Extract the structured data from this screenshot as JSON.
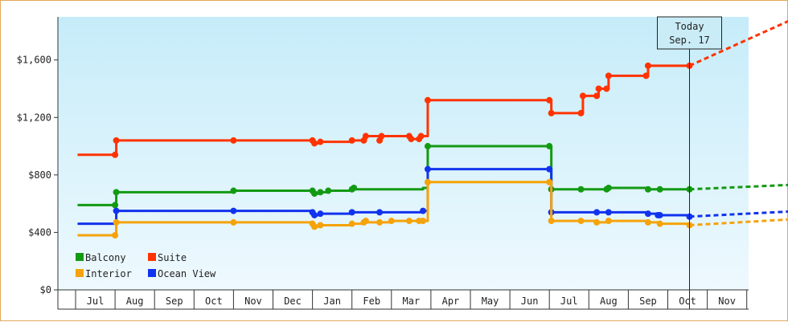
{
  "chart_data": {
    "type": "line",
    "title": "",
    "xlabel": "",
    "ylabel": "",
    "ylim": [
      0,
      1900
    ],
    "grid": false,
    "legend_position": "bottom-left",
    "y_ticks": [
      {
        "value": 0,
        "label": "$0"
      },
      {
        "value": 400,
        "label": "$400"
      },
      {
        "value": 800,
        "label": "$800"
      },
      {
        "value": 1200,
        "label": "$1,200"
      },
      {
        "value": 1600,
        "label": "$1,600"
      }
    ],
    "x_months": [
      "Jul",
      "Aug",
      "Sep",
      "Oct",
      "Nov",
      "Dec",
      "Jan",
      "Feb",
      "Mar",
      "Apr",
      "May",
      "Jun",
      "Jul",
      "Aug",
      "Sep",
      "Oct",
      "Nov"
    ],
    "today_marker": {
      "x": 15.05,
      "line1": "Today",
      "line2": "Sep. 17"
    },
    "series": [
      {
        "name": "Suite",
        "color": "#ff3300",
        "points": [
          [
            -0.45,
            940
          ],
          [
            0.5,
            940
          ],
          [
            0.53,
            1040
          ],
          [
            3.5,
            1040
          ],
          [
            5.5,
            1040
          ],
          [
            5.55,
            1020
          ],
          [
            5.7,
            1030
          ],
          [
            6.5,
            1040
          ],
          [
            6.8,
            1040
          ],
          [
            6.85,
            1070
          ],
          [
            7.2,
            1040
          ],
          [
            7.25,
            1070
          ],
          [
            7.95,
            1070
          ],
          [
            8.0,
            1050
          ],
          [
            8.2,
            1050
          ],
          [
            8.25,
            1070
          ],
          [
            8.3,
            1070
          ],
          [
            8.42,
            1320
          ],
          [
            11.5,
            1320
          ],
          [
            11.55,
            1230
          ],
          [
            12.3,
            1230
          ],
          [
            12.35,
            1350
          ],
          [
            12.7,
            1350
          ],
          [
            12.75,
            1400
          ],
          [
            12.95,
            1400
          ],
          [
            13.0,
            1490
          ],
          [
            13.95,
            1490
          ],
          [
            14.0,
            1560
          ],
          [
            15.05,
            1560
          ]
        ],
        "projection": [
          [
            15.05,
            1560
          ],
          [
            17.55,
            1870
          ]
        ]
      },
      {
        "name": "Balcony",
        "color": "#139a13",
        "points": [
          [
            -0.45,
            590
          ],
          [
            0.5,
            590
          ],
          [
            0.53,
            680
          ],
          [
            3.5,
            690
          ],
          [
            5.5,
            690
          ],
          [
            5.55,
            670
          ],
          [
            5.7,
            680
          ],
          [
            5.9,
            690
          ],
          [
            6.5,
            700
          ],
          [
            8.3,
            710
          ],
          [
            8.42,
            1000
          ],
          [
            11.5,
            1000
          ],
          [
            11.55,
            700
          ],
          [
            12.3,
            700
          ],
          [
            12.95,
            700
          ],
          [
            13.0,
            710
          ],
          [
            14.0,
            700
          ],
          [
            14.3,
            700
          ],
          [
            15.05,
            700
          ]
        ],
        "projection": [
          [
            15.05,
            700
          ],
          [
            17.55,
            730
          ]
        ]
      },
      {
        "name": "Ocean View",
        "color": "#1133ee",
        "points": [
          [
            -0.45,
            460
          ],
          [
            0.5,
            460
          ],
          [
            0.53,
            550
          ],
          [
            3.5,
            550
          ],
          [
            5.5,
            540
          ],
          [
            5.55,
            520
          ],
          [
            5.7,
            530
          ],
          [
            6.5,
            540
          ],
          [
            7.2,
            540
          ],
          [
            8.3,
            550
          ],
          [
            8.42,
            840
          ],
          [
            11.5,
            840
          ],
          [
            11.55,
            540
          ],
          [
            12.7,
            540
          ],
          [
            13.0,
            540
          ],
          [
            14.0,
            530
          ],
          [
            14.25,
            520
          ],
          [
            14.3,
            520
          ],
          [
            15.05,
            510
          ]
        ],
        "projection": [
          [
            15.05,
            510
          ],
          [
            17.55,
            545
          ]
        ]
      },
      {
        "name": "Interior",
        "color": "#f5a30a",
        "points": [
          [
            -0.45,
            380
          ],
          [
            0.5,
            380
          ],
          [
            0.53,
            470
          ],
          [
            3.5,
            470
          ],
          [
            5.5,
            460
          ],
          [
            5.55,
            440
          ],
          [
            5.7,
            450
          ],
          [
            6.5,
            460
          ],
          [
            6.8,
            470
          ],
          [
            7.2,
            470
          ],
          [
            7.5,
            480
          ],
          [
            8.3,
            480
          ],
          [
            8.42,
            750
          ],
          [
            11.5,
            750
          ],
          [
            11.55,
            480
          ],
          [
            12.3,
            480
          ],
          [
            12.7,
            470
          ],
          [
            13.0,
            480
          ],
          [
            14.0,
            470
          ],
          [
            14.3,
            460
          ],
          [
            15.05,
            450
          ]
        ],
        "projection": [
          [
            15.05,
            450
          ],
          [
            17.55,
            490
          ]
        ]
      }
    ],
    "markers": {
      "Suite": [
        [
          0.5,
          940
        ],
        [
          0.53,
          1040
        ],
        [
          3.5,
          1040
        ],
        [
          5.5,
          1040
        ],
        [
          5.55,
          1020
        ],
        [
          5.7,
          1030
        ],
        [
          6.5,
          1040
        ],
        [
          6.8,
          1040
        ],
        [
          6.85,
          1070
        ],
        [
          7.2,
          1040
        ],
        [
          7.25,
          1070
        ],
        [
          7.95,
          1070
        ],
        [
          8.0,
          1050
        ],
        [
          8.2,
          1050
        ],
        [
          8.25,
          1070
        ],
        [
          8.42,
          1320
        ],
        [
          11.5,
          1320
        ],
        [
          11.55,
          1230
        ],
        [
          12.3,
          1230
        ],
        [
          12.35,
          1350
        ],
        [
          12.7,
          1350
        ],
        [
          12.75,
          1400
        ],
        [
          12.95,
          1400
        ],
        [
          13.0,
          1490
        ],
        [
          13.95,
          1490
        ],
        [
          14.0,
          1560
        ],
        [
          15.05,
          1560
        ]
      ],
      "Balcony": [
        [
          0.5,
          590
        ],
        [
          0.53,
          680
        ],
        [
          3.5,
          690
        ],
        [
          5.5,
          690
        ],
        [
          5.55,
          670
        ],
        [
          5.7,
          680
        ],
        [
          5.9,
          690
        ],
        [
          6.5,
          700
        ],
        [
          6.55,
          710
        ],
        [
          8.42,
          1000
        ],
        [
          11.5,
          1000
        ],
        [
          11.55,
          700
        ],
        [
          12.3,
          700
        ],
        [
          12.95,
          700
        ],
        [
          13.0,
          710
        ],
        [
          14.0,
          700
        ],
        [
          14.3,
          700
        ],
        [
          15.05,
          700
        ]
      ],
      "Ocean View": [
        [
          0.53,
          550
        ],
        [
          3.5,
          550
        ],
        [
          5.5,
          540
        ],
        [
          5.55,
          520
        ],
        [
          5.7,
          530
        ],
        [
          6.5,
          540
        ],
        [
          7.2,
          540
        ],
        [
          8.3,
          550
        ],
        [
          8.42,
          840
        ],
        [
          11.5,
          840
        ],
        [
          11.55,
          540
        ],
        [
          12.7,
          540
        ],
        [
          13.0,
          540
        ],
        [
          14.0,
          530
        ],
        [
          14.25,
          520
        ],
        [
          14.3,
          520
        ],
        [
          15.05,
          510
        ]
      ],
      "Interior": [
        [
          0.5,
          380
        ],
        [
          0.53,
          470
        ],
        [
          3.5,
          470
        ],
        [
          5.5,
          460
        ],
        [
          5.55,
          440
        ],
        [
          5.7,
          450
        ],
        [
          6.5,
          460
        ],
        [
          6.8,
          470
        ],
        [
          6.85,
          480
        ],
        [
          7.2,
          470
        ],
        [
          7.5,
          480
        ],
        [
          7.95,
          480
        ],
        [
          8.2,
          480
        ],
        [
          8.3,
          480
        ],
        [
          8.42,
          750
        ],
        [
          11.5,
          750
        ],
        [
          11.55,
          480
        ],
        [
          12.3,
          480
        ],
        [
          12.7,
          470
        ],
        [
          13.0,
          480
        ],
        [
          14.0,
          470
        ],
        [
          14.3,
          460
        ],
        [
          15.05,
          450
        ]
      ]
    },
    "legend": [
      {
        "name": "Balcony",
        "color": "#139a13"
      },
      {
        "name": "Suite",
        "color": "#ff3300"
      },
      {
        "name": "Interior",
        "color": "#f5a30a"
      },
      {
        "name": "Ocean View",
        "color": "#1133ee"
      }
    ]
  }
}
